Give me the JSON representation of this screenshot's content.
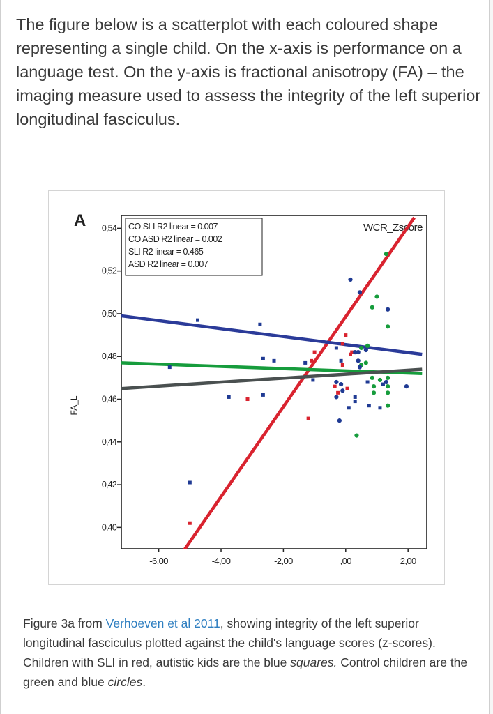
{
  "intro_text": "The figure below is a scatterplot with each coloured shape representing a single child. On the x-axis is performance on a language test. On the y-axis is fractional anisotropy (FA) – the imaging measure used to assess the integrity of the left superior longitudinal fasciculus.",
  "caption": {
    "part1": "Figure 3a from ",
    "link": "Verhoeven et al 2011",
    "part2": ", showing integrity of the left superior longitudinal fasciculus plotted against the child's language scores (z-scores). Children with SLI in red, autistic kids are the blue ",
    "italic1": "squares.",
    "part3": " Control children are the green and blue ",
    "italic2": "circles",
    "part4": "."
  },
  "colors": {
    "sli": "#d9232f",
    "asd": "#1f3a93",
    "co_green": "#169c3c",
    "co_blue": "#1f3a93",
    "co_sli_line": "#169c3c",
    "co_asd_line": "#4a5050",
    "sli_line": "#d9232f",
    "asd_line": "#2b3b99"
  },
  "chart_data": {
    "type": "scatter",
    "panel_letter": "A",
    "xlabel": "WCR_Zscore",
    "ylabel": "FA_L",
    "xlim": [
      -7.2,
      2.6
    ],
    "ylim": [
      0.39,
      0.546
    ],
    "x_ticks": [
      -6,
      -4,
      -2,
      0,
      2
    ],
    "x_tick_labels": [
      "-6,00",
      "-4,00",
      "-2,00",
      ",00",
      "2,00"
    ],
    "y_ticks": [
      0.4,
      0.42,
      0.44,
      0.46,
      0.48,
      0.5,
      0.52,
      0.54
    ],
    "y_tick_labels": [
      "0,40",
      "0,42",
      "0,44",
      "0,46",
      "0,48",
      "0,50",
      "0,52",
      "0,54"
    ],
    "legend": [
      "CO SLI R2 linear = 0.007",
      "CO ASD R2 linear = 0.002",
      "SLI R2 linear = 0.465",
      "ASD R2 linear = 0.007"
    ],
    "fit_lines": [
      {
        "group": "sli",
        "points": [
          [
            -5.25,
            0.388
          ],
          [
            2.2,
            0.545
          ]
        ]
      },
      {
        "group": "asd",
        "points": [
          [
            -7.2,
            0.499
          ],
          [
            2.45,
            0.481
          ]
        ]
      },
      {
        "group": "co_sli",
        "points": [
          [
            -7.2,
            0.477
          ],
          [
            2.45,
            0.472
          ]
        ]
      },
      {
        "group": "co_asd",
        "points": [
          [
            -7.2,
            0.465
          ],
          [
            2.45,
            0.474
          ]
        ]
      }
    ],
    "series": [
      {
        "group": "sli",
        "shape": "square",
        "points": [
          [
            -5.0,
            0.402
          ],
          [
            -3.15,
            0.46
          ],
          [
            -1.2,
            0.451
          ],
          [
            -1.1,
            0.478
          ],
          [
            -1.0,
            0.482
          ],
          [
            -0.35,
            0.466
          ],
          [
            -0.25,
            0.463
          ],
          [
            -0.1,
            0.476
          ],
          [
            0.05,
            0.465
          ],
          [
            0.15,
            0.481
          ],
          [
            -0.1,
            0.486
          ],
          [
            0.0,
            0.49
          ],
          [
            0.2,
            0.482
          ]
        ]
      },
      {
        "group": "asd",
        "shape": "square",
        "points": [
          [
            -5.65,
            0.475
          ],
          [
            -4.75,
            0.497
          ],
          [
            -5.0,
            0.421
          ],
          [
            -3.75,
            0.461
          ],
          [
            -2.75,
            0.495
          ],
          [
            -2.65,
            0.462
          ],
          [
            -2.65,
            0.479
          ],
          [
            -2.3,
            0.478
          ],
          [
            -1.3,
            0.477
          ],
          [
            -1.05,
            0.469
          ],
          [
            -0.3,
            0.484
          ],
          [
            -0.15,
            0.478
          ],
          [
            0.1,
            0.456
          ],
          [
            0.75,
            0.457
          ],
          [
            1.1,
            0.456
          ],
          [
            1.2,
            0.467
          ],
          [
            0.7,
            0.468
          ],
          [
            0.3,
            0.461
          ],
          [
            0.3,
            0.459
          ]
        ]
      },
      {
        "group": "co_green",
        "shape": "circle",
        "points": [
          [
            0.85,
            0.503
          ],
          [
            1.0,
            0.508
          ],
          [
            1.35,
            0.494
          ],
          [
            1.3,
            0.528
          ],
          [
            0.5,
            0.484
          ],
          [
            0.7,
            0.485
          ],
          [
            0.5,
            0.476
          ],
          [
            0.65,
            0.477
          ],
          [
            1.1,
            0.469
          ],
          [
            1.35,
            0.466
          ],
          [
            1.35,
            0.463
          ],
          [
            1.35,
            0.47
          ],
          [
            1.35,
            0.457
          ],
          [
            0.85,
            0.47
          ],
          [
            0.9,
            0.466
          ],
          [
            0.9,
            0.463
          ],
          [
            0.35,
            0.443
          ]
        ]
      },
      {
        "group": "co_blue",
        "shape": "circle",
        "points": [
          [
            0.15,
            0.516
          ],
          [
            0.45,
            0.51
          ],
          [
            1.35,
            0.502
          ],
          [
            -0.3,
            0.468
          ],
          [
            -0.15,
            0.467
          ],
          [
            -0.3,
            0.461
          ],
          [
            -0.1,
            0.464
          ],
          [
            -0.2,
            0.45
          ],
          [
            0.3,
            0.482
          ],
          [
            0.65,
            0.483
          ],
          [
            0.45,
            0.475
          ],
          [
            1.95,
            0.466
          ],
          [
            1.3,
            0.468
          ],
          [
            0.4,
            0.478
          ],
          [
            0.4,
            0.482
          ]
        ]
      }
    ]
  }
}
